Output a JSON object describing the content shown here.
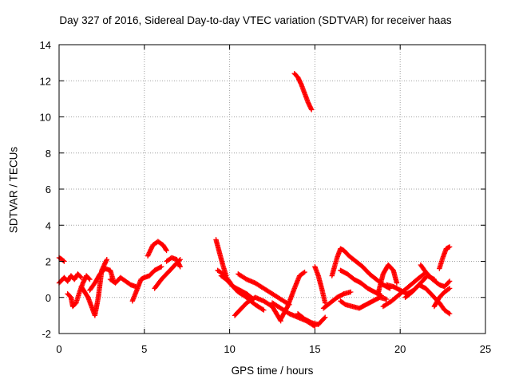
{
  "chart_data": {
    "type": "scatter",
    "title": "Day 327 of 2016, Sidereal Day-to-day VTEC variation (SDTVAR) for receiver haas",
    "xlabel": "GPS time / hours",
    "ylabel": "SDTVAR / TECUs",
    "xlim": [
      0,
      25
    ],
    "ylim": [
      -2,
      14
    ],
    "xticks": [
      0,
      5,
      10,
      15,
      20,
      25
    ],
    "yticks": [
      -2,
      0,
      2,
      4,
      6,
      8,
      10,
      12,
      14
    ],
    "grid": true,
    "legend": "none",
    "marker": "plus",
    "color": "#ff0000",
    "series": [
      {
        "name": "tracks",
        "tracks": [
          {
            "x": [
              0.0,
              0.1,
              0.3
            ],
            "y": [
              2.2,
              2.15,
              2.0
            ]
          },
          {
            "x": [
              0.0,
              0.3,
              0.5,
              0.7,
              0.9,
              1.1,
              1.3
            ],
            "y": [
              0.8,
              1.1,
              0.9,
              1.2,
              1.0,
              1.3,
              1.1
            ]
          },
          {
            "x": [
              0.5,
              0.7,
              0.8,
              1.0,
              1.2,
              1.4,
              1.6,
              1.8
            ],
            "y": [
              0.2,
              0.0,
              -0.5,
              -0.3,
              0.3,
              0.8,
              1.2,
              1.0
            ]
          },
          {
            "x": [
              1.3,
              1.5,
              1.7,
              1.9,
              2.1,
              2.3,
              2.5,
              2.8
            ],
            "y": [
              0.6,
              0.3,
              0.0,
              -0.5,
              -1.0,
              0.0,
              1.5,
              2.1
            ]
          },
          {
            "x": [
              1.8,
              2.1,
              2.4,
              2.7,
              3.0,
              3.2
            ],
            "y": [
              0.4,
              0.8,
              1.3,
              1.6,
              1.5,
              0.9
            ]
          },
          {
            "x": [
              3.0,
              3.3,
              3.6,
              3.9,
              4.2,
              4.5
            ],
            "y": [
              1.0,
              0.8,
              1.1,
              0.9,
              0.7,
              0.6
            ]
          },
          {
            "x": [
              4.3,
              4.6,
              4.8,
              5.0,
              5.3,
              5.6,
              6.0
            ],
            "y": [
              -0.2,
              0.5,
              1.0,
              1.1,
              1.2,
              1.5,
              1.7
            ]
          },
          {
            "x": [
              5.2,
              5.5,
              5.8,
              6.1,
              6.3
            ],
            "y": [
              2.3,
              2.9,
              3.1,
              2.9,
              2.6
            ]
          },
          {
            "x": [
              5.6,
              6.0,
              6.4,
              6.8,
              7.1
            ],
            "y": [
              0.5,
              1.0,
              1.4,
              1.8,
              2.1
            ]
          },
          {
            "x": [
              6.3,
              6.6,
              6.9,
              7.1
            ],
            "y": [
              2.0,
              2.2,
              2.1,
              1.7
            ]
          },
          {
            "x": [
              9.2,
              9.4,
              9.6,
              9.8
            ],
            "y": [
              3.2,
              2.5,
              1.8,
              1.2
            ]
          },
          {
            "x": [
              9.3,
              9.6,
              9.9,
              10.2,
              10.6,
              11.0,
              11.4
            ],
            "y": [
              1.5,
              1.3,
              1.0,
              0.6,
              0.4,
              0.2,
              -0.1
            ]
          },
          {
            "x": [
              9.5,
              9.8,
              10.1,
              10.5,
              11.0,
              11.5,
              12.0
            ],
            "y": [
              1.2,
              1.0,
              0.7,
              0.3,
              0.0,
              -0.4,
              -0.7
            ]
          },
          {
            "x": [
              10.3,
              10.6,
              11.0,
              11.5,
              12.0,
              12.5,
              13.0
            ],
            "y": [
              -1.0,
              -0.7,
              -0.3,
              0.0,
              -0.2,
              -0.5,
              -1.3
            ]
          },
          {
            "x": [
              10.5,
              11.0,
              11.5,
              12.0,
              12.5,
              13.0,
              13.5
            ],
            "y": [
              1.3,
              1.0,
              0.8,
              0.5,
              0.2,
              -0.1,
              -0.4
            ]
          },
          {
            "x": [
              12.5,
              13.0,
              13.5,
              14.0,
              14.5,
              15.0
            ],
            "y": [
              -0.3,
              -0.6,
              -0.9,
              -1.1,
              -1.3,
              -1.6
            ]
          },
          {
            "x": [
              13.0,
              13.4,
              13.8,
              14.1,
              14.4
            ],
            "y": [
              -1.2,
              -0.5,
              0.5,
              1.2,
              1.4
            ]
          },
          {
            "x": [
              13.8,
              14.0,
              14.2,
              14.4,
              14.6,
              14.8
            ],
            "y": [
              12.4,
              12.2,
              11.8,
              11.3,
              10.8,
              10.4
            ]
          },
          {
            "x": [
              14.0,
              14.4,
              14.8,
              15.2,
              15.6
            ],
            "y": [
              -0.9,
              -1.2,
              -1.4,
              -1.5,
              -1.1
            ]
          },
          {
            "x": [
              15.0,
              15.2,
              15.4,
              15.6
            ],
            "y": [
              1.7,
              1.2,
              0.5,
              -0.3
            ]
          },
          {
            "x": [
              15.5,
              15.9,
              16.3,
              16.7,
              17.1
            ],
            "y": [
              -0.6,
              -0.3,
              0.0,
              0.2,
              0.3
            ]
          },
          {
            "x": [
              16.0,
              16.3,
              16.5,
              16.7,
              17.0,
              17.4,
              17.8,
              18.2,
              18.6,
              19.0,
              19.4
            ],
            "y": [
              1.2,
              2.2,
              2.7,
              2.6,
              2.3,
              2.0,
              1.7,
              1.3,
              1.0,
              0.7,
              0.5
            ]
          },
          {
            "x": [
              16.5,
              16.9,
              17.3,
              17.7,
              18.1,
              18.5,
              18.9
            ],
            "y": [
              1.5,
              1.3,
              1.0,
              0.8,
              0.5,
              0.3,
              0.1
            ]
          },
          {
            "x": [
              16.5,
              16.8,
              17.2,
              17.6,
              18.0,
              18.4,
              18.8,
              19.2
            ],
            "y": [
              -0.2,
              -0.4,
              -0.5,
              -0.6,
              -0.4,
              -0.2,
              0.0,
              -0.1
            ]
          },
          {
            "x": [
              18.7,
              19.0,
              19.3,
              19.6,
              19.8
            ],
            "y": [
              0.2,
              1.3,
              1.8,
              1.5,
              0.8
            ]
          },
          {
            "x": [
              19.0,
              19.5,
              20.0,
              20.5,
              21.0,
              21.4
            ],
            "y": [
              -0.5,
              -0.2,
              0.2,
              0.6,
              1.0,
              1.3
            ]
          },
          {
            "x": [
              19.2,
              19.6,
              20.0,
              20.4,
              20.8,
              21.2,
              21.6,
              22.0
            ],
            "y": [
              0.7,
              0.6,
              0.4,
              0.2,
              0.4,
              0.8,
              1.2,
              1.0
            ]
          },
          {
            "x": [
              20.3,
              20.7,
              21.1,
              21.5,
              21.9,
              22.3,
              22.6,
              22.9
            ],
            "y": [
              0.0,
              0.3,
              0.7,
              0.5,
              0.1,
              -0.3,
              -0.7,
              -0.9
            ]
          },
          {
            "x": [
              21.2,
              21.5,
              21.9,
              22.3,
              22.6,
              22.9
            ],
            "y": [
              1.8,
              1.4,
              1.0,
              0.7,
              0.6,
              0.9
            ]
          },
          {
            "x": [
              22.3,
              22.5,
              22.7,
              22.9
            ],
            "y": [
              1.6,
              2.2,
              2.7,
              2.8
            ]
          },
          {
            "x": [
              22.0,
              22.3,
              22.6,
              22.9
            ],
            "y": [
              -0.5,
              0.0,
              0.3,
              0.5
            ]
          }
        ]
      }
    ]
  }
}
